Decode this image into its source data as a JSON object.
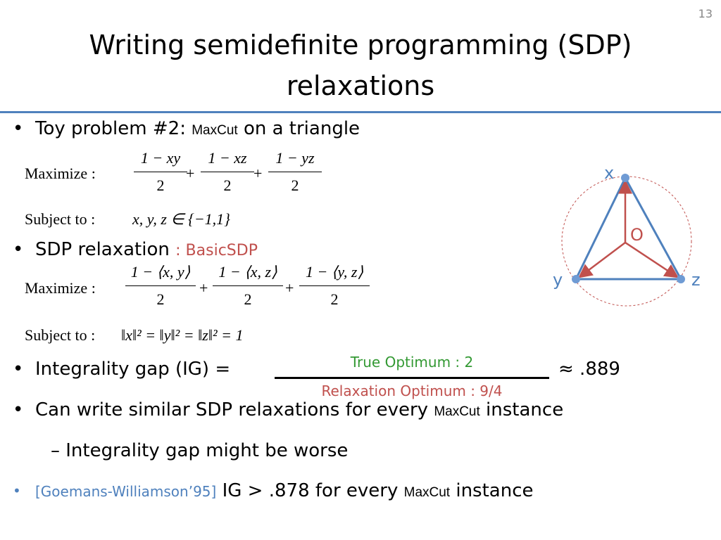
{
  "slide_number": "13",
  "title": [
    "Writing semidefinite programming (SDP)",
    "relaxations"
  ],
  "bullet_1": {
    "text": "Toy problem #2: ",
    "term": "MaxCut",
    "rest": " on a triangle"
  },
  "formula_max": {
    "label": "Maximize :",
    "plus": "+",
    "terms": [
      {
        "numerator": "1 − xy",
        "denominator": "2"
      },
      {
        "numerator": "1 − xz",
        "denominator": "2"
      },
      {
        "numerator": "1 − yz",
        "denominator": "2"
      }
    ]
  },
  "formula_subject": {
    "label": "Subject to :",
    "constraint": "x, y, z ∈ {−1,1}"
  },
  "bullet_2": {
    "text": "SDP relaxation",
    "note": ": BasicSDP"
  },
  "formula_sdp_max": {
    "label": "Maximize :",
    "plus": "+",
    "terms": [
      {
        "numerator": "1 − ⟨x, y⟩",
        "denominator": "2"
      },
      {
        "numerator": "1 − ⟨x, z⟩",
        "denominator": "2"
      },
      {
        "numerator": "1 − ⟨y, z⟩",
        "denominator": "2"
      }
    ]
  },
  "formula_sdp_subject": {
    "label": "Subject to :",
    "constraint": "‖x‖² = ‖y‖² = ‖z‖² = 1"
  },
  "bullet_3": {
    "text": "Integrality gap (IG) = ",
    "numerator": "True Optimum : 2",
    "denominator": "Relaxation Optimum : 9/4",
    "result": "≈ .889"
  },
  "bullet_4": {
    "text": "Can write similar SDP relaxations for every ",
    "term": "MaxCut",
    "rest": " instance"
  },
  "sub_bullet": {
    "marker": "–",
    "text": "Integrality gap might be worse"
  },
  "bullet_5": {
    "citation": "[Goemans-Williamson’95]",
    "text": " IG > .878 for every ",
    "term": "MaxCut",
    "rest": " instance"
  },
  "diagram": {
    "labels": {
      "x": "x",
      "y": "y",
      "z": "z",
      "origin": "O"
    }
  }
}
